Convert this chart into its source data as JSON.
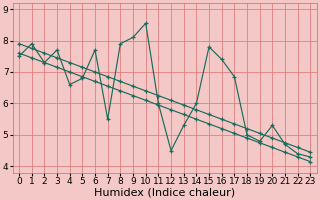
{
  "xlabel": "Humidex (Indice chaleur)",
  "ylabel": "",
  "xlim": [
    -0.5,
    23.5
  ],
  "ylim": [
    3.8,
    9.2
  ],
  "bg_color": "#f5c8c8",
  "grid_color": "#e08080",
  "line_color": "#1a6b5a",
  "lines": [
    {
      "x": [
        0,
        1,
        2,
        3,
        4,
        5,
        6,
        7,
        8,
        9,
        10,
        11,
        12,
        13,
        14,
        15,
        16,
        17,
        18,
        19,
        20,
        21,
        22,
        23
      ],
      "y": [
        7.5,
        7.9,
        7.3,
        7.7,
        6.6,
        6.8,
        7.7,
        5.5,
        7.9,
        8.1,
        8.55,
        6.0,
        4.5,
        5.3,
        6.0,
        7.8,
        7.4,
        6.85,
        5.0,
        4.8,
        5.3,
        4.7,
        4.4,
        4.3
      ]
    },
    {
      "x": [
        0,
        1,
        2,
        3,
        4,
        5,
        6,
        7,
        8,
        9,
        10,
        11,
        12,
        13,
        14,
        15,
        16,
        17,
        18,
        19,
        20,
        21,
        22,
        23
      ],
      "y": [
        7.9,
        7.75,
        7.6,
        7.45,
        7.3,
        7.15,
        7.0,
        6.85,
        6.7,
        6.55,
        6.4,
        6.25,
        6.1,
        5.95,
        5.8,
        5.65,
        5.5,
        5.35,
        5.2,
        5.05,
        4.9,
        4.75,
        4.6,
        4.45
      ]
    },
    {
      "x": [
        0,
        1,
        2,
        3,
        4,
        5,
        6,
        7,
        8,
        9,
        10,
        11,
        12,
        13,
        14,
        15,
        16,
        17,
        18,
        19,
        20,
        21,
        22,
        23
      ],
      "y": [
        7.6,
        7.45,
        7.3,
        7.15,
        7.0,
        6.85,
        6.7,
        6.55,
        6.4,
        6.25,
        6.1,
        5.95,
        5.8,
        5.65,
        5.5,
        5.35,
        5.2,
        5.05,
        4.9,
        4.75,
        4.6,
        4.45,
        4.3,
        4.15
      ]
    }
  ],
  "xticks": [
    0,
    1,
    2,
    3,
    4,
    5,
    6,
    7,
    8,
    9,
    10,
    11,
    12,
    13,
    14,
    15,
    16,
    17,
    18,
    19,
    20,
    21,
    22,
    23
  ],
  "yticks": [
    4,
    5,
    6,
    7,
    8,
    9
  ],
  "xlabel_fontsize": 8,
  "tick_fontsize": 6.5
}
